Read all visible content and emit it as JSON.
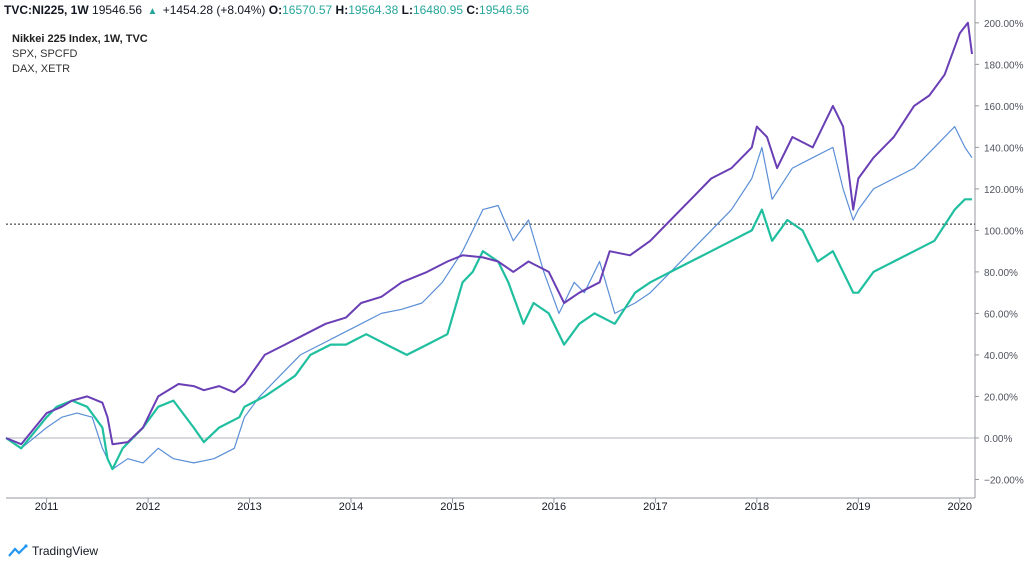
{
  "header": {
    "symbol": "TVC:NI225, 1W",
    "price": "19546.56",
    "change": "+1454.28 (+8.04%)",
    "o_label": "O:",
    "o_value": "16570.57",
    "h_label": "H:",
    "h_value": "19564.38",
    "l_label": "L:",
    "l_value": "16480.95",
    "c_label": "C:",
    "c_value": "19546.56"
  },
  "legend": [
    "Nikkei 225 Index, 1W, TVC",
    "SPX, SPCFD",
    "DAX, XETR"
  ],
  "footer": {
    "brand": "TradingView"
  },
  "colors": {
    "nikkei": "#6a3fb5",
    "spx": "#5b8fd6",
    "dax": "#1fbf9f",
    "up": "#26a69a"
  },
  "chart_data": {
    "type": "line",
    "x_unit": "decimal year",
    "xlim": [
      2010.6,
      2020.15
    ],
    "ylim": [
      -27,
      211
    ],
    "y_ticks": [
      -20,
      0,
      20,
      40,
      60,
      80,
      100,
      120,
      140,
      160,
      180,
      200
    ],
    "y_tick_labels": [
      "−20.00%",
      "0.00%",
      "20.00%",
      "40.00%",
      "60.00%",
      "80.00%",
      "100.00%",
      "120.00%",
      "140.00%",
      "160.00%",
      "180.00%",
      "200.00%"
    ],
    "x_ticks": [
      2011,
      2012,
      2013,
      2014,
      2015,
      2016,
      2017,
      2018,
      2019,
      2020
    ],
    "x_tick_labels": [
      "2011",
      "2012",
      "2013",
      "2014",
      "2015",
      "2016",
      "2017",
      "2018",
      "2019",
      "2020"
    ],
    "horizontal_line": 103,
    "series": [
      {
        "name": "Nikkei 225 Index, 1W, TVC",
        "x": [
          2010.6,
          2010.75,
          2011.0,
          2011.15,
          2011.25,
          2011.4,
          2011.55,
          2011.6,
          2011.65,
          2011.8,
          2011.95,
          2012.1,
          2012.3,
          2012.45,
          2012.55,
          2012.7,
          2012.85,
          2012.95,
          2013.15,
          2013.35,
          2013.55,
          2013.75,
          2013.95,
          2014.1,
          2014.3,
          2014.5,
          2014.75,
          2014.95,
          2015.1,
          2015.3,
          2015.45,
          2015.6,
          2015.75,
          2015.95,
          2016.1,
          2016.25,
          2016.45,
          2016.55,
          2016.75,
          2016.95,
          2017.15,
          2017.35,
          2017.55,
          2017.75,
          2017.95,
          2018.0,
          2018.1,
          2018.2,
          2018.35,
          2018.55,
          2018.75,
          2018.85,
          2018.95,
          2019.0,
          2019.15,
          2019.35,
          2019.55,
          2019.7,
          2019.85,
          2020.0,
          2020.08,
          2020.12
        ],
        "y": [
          0,
          -3,
          12,
          15,
          18,
          20,
          17,
          10,
          -3,
          -2,
          5,
          20,
          26,
          25,
          23,
          25,
          22,
          26,
          40,
          45,
          50,
          55,
          58,
          65,
          68,
          75,
          80,
          85,
          88,
          87,
          85,
          80,
          85,
          80,
          65,
          70,
          75,
          90,
          88,
          95,
          105,
          115,
          125,
          130,
          140,
          150,
          145,
          130,
          145,
          140,
          160,
          150,
          110,
          125,
          135,
          145,
          160,
          165,
          175,
          195,
          200,
          185
        ]
      },
      {
        "name": "SPX, SPCFD",
        "x": [
          2010.6,
          2010.75,
          2011.0,
          2011.15,
          2011.3,
          2011.45,
          2011.55,
          2011.65,
          2011.8,
          2011.95,
          2012.1,
          2012.25,
          2012.45,
          2012.65,
          2012.85,
          2012.95,
          2013.1,
          2013.3,
          2013.5,
          2013.7,
          2013.9,
          2014.1,
          2014.3,
          2014.5,
          2014.7,
          2014.9,
          2015.1,
          2015.3,
          2015.45,
          2015.6,
          2015.75,
          2015.9,
          2016.05,
          2016.2,
          2016.3,
          2016.45,
          2016.6,
          2016.8,
          2016.95,
          2017.15,
          2017.35,
          2017.55,
          2017.75,
          2017.95,
          2018.05,
          2018.15,
          2018.35,
          2018.55,
          2018.75,
          2018.85,
          2018.95,
          2019.0,
          2019.15,
          2019.35,
          2019.55,
          2019.75,
          2019.95,
          2020.05,
          2020.12
        ],
        "y": [
          0,
          -5,
          5,
          10,
          12,
          10,
          -5,
          -15,
          -10,
          -12,
          -5,
          -10,
          -12,
          -10,
          -5,
          10,
          20,
          30,
          40,
          45,
          50,
          55,
          60,
          62,
          65,
          75,
          90,
          110,
          112,
          95,
          105,
          80,
          60,
          75,
          70,
          85,
          60,
          65,
          70,
          80,
          90,
          100,
          110,
          125,
          140,
          115,
          130,
          135,
          140,
          120,
          105,
          110,
          120,
          125,
          130,
          140,
          150,
          140,
          135
        ]
      },
      {
        "name": "DAX, XETR",
        "x": [
          2010.6,
          2010.75,
          2011.0,
          2011.1,
          2011.25,
          2011.4,
          2011.55,
          2011.6,
          2011.65,
          2011.75,
          2011.95,
          2012.1,
          2012.25,
          2012.45,
          2012.55,
          2012.7,
          2012.9,
          2012.95,
          2013.15,
          2013.3,
          2013.45,
          2013.6,
          2013.8,
          2013.95,
          2014.15,
          2014.35,
          2014.55,
          2014.75,
          2014.95,
          2015.1,
          2015.2,
          2015.3,
          2015.45,
          2015.55,
          2015.7,
          2015.8,
          2015.95,
          2016.1,
          2016.25,
          2016.4,
          2016.6,
          2016.8,
          2016.95,
          2017.15,
          2017.35,
          2017.55,
          2017.75,
          2017.95,
          2018.05,
          2018.15,
          2018.3,
          2018.45,
          2018.6,
          2018.75,
          2018.9,
          2018.95,
          2019.0,
          2019.15,
          2019.35,
          2019.55,
          2019.75,
          2019.95,
          2020.05,
          2020.12
        ],
        "y": [
          0,
          -5,
          10,
          15,
          18,
          15,
          5,
          -10,
          -15,
          -5,
          5,
          15,
          18,
          5,
          -2,
          5,
          10,
          15,
          20,
          25,
          30,
          40,
          45,
          45,
          50,
          45,
          40,
          45,
          50,
          75,
          80,
          90,
          85,
          75,
          55,
          65,
          60,
          45,
          55,
          60,
          55,
          70,
          75,
          80,
          85,
          90,
          95,
          100,
          110,
          95,
          105,
          100,
          85,
          90,
          75,
          70,
          70,
          80,
          85,
          90,
          95,
          110,
          115,
          115
        ]
      }
    ]
  }
}
